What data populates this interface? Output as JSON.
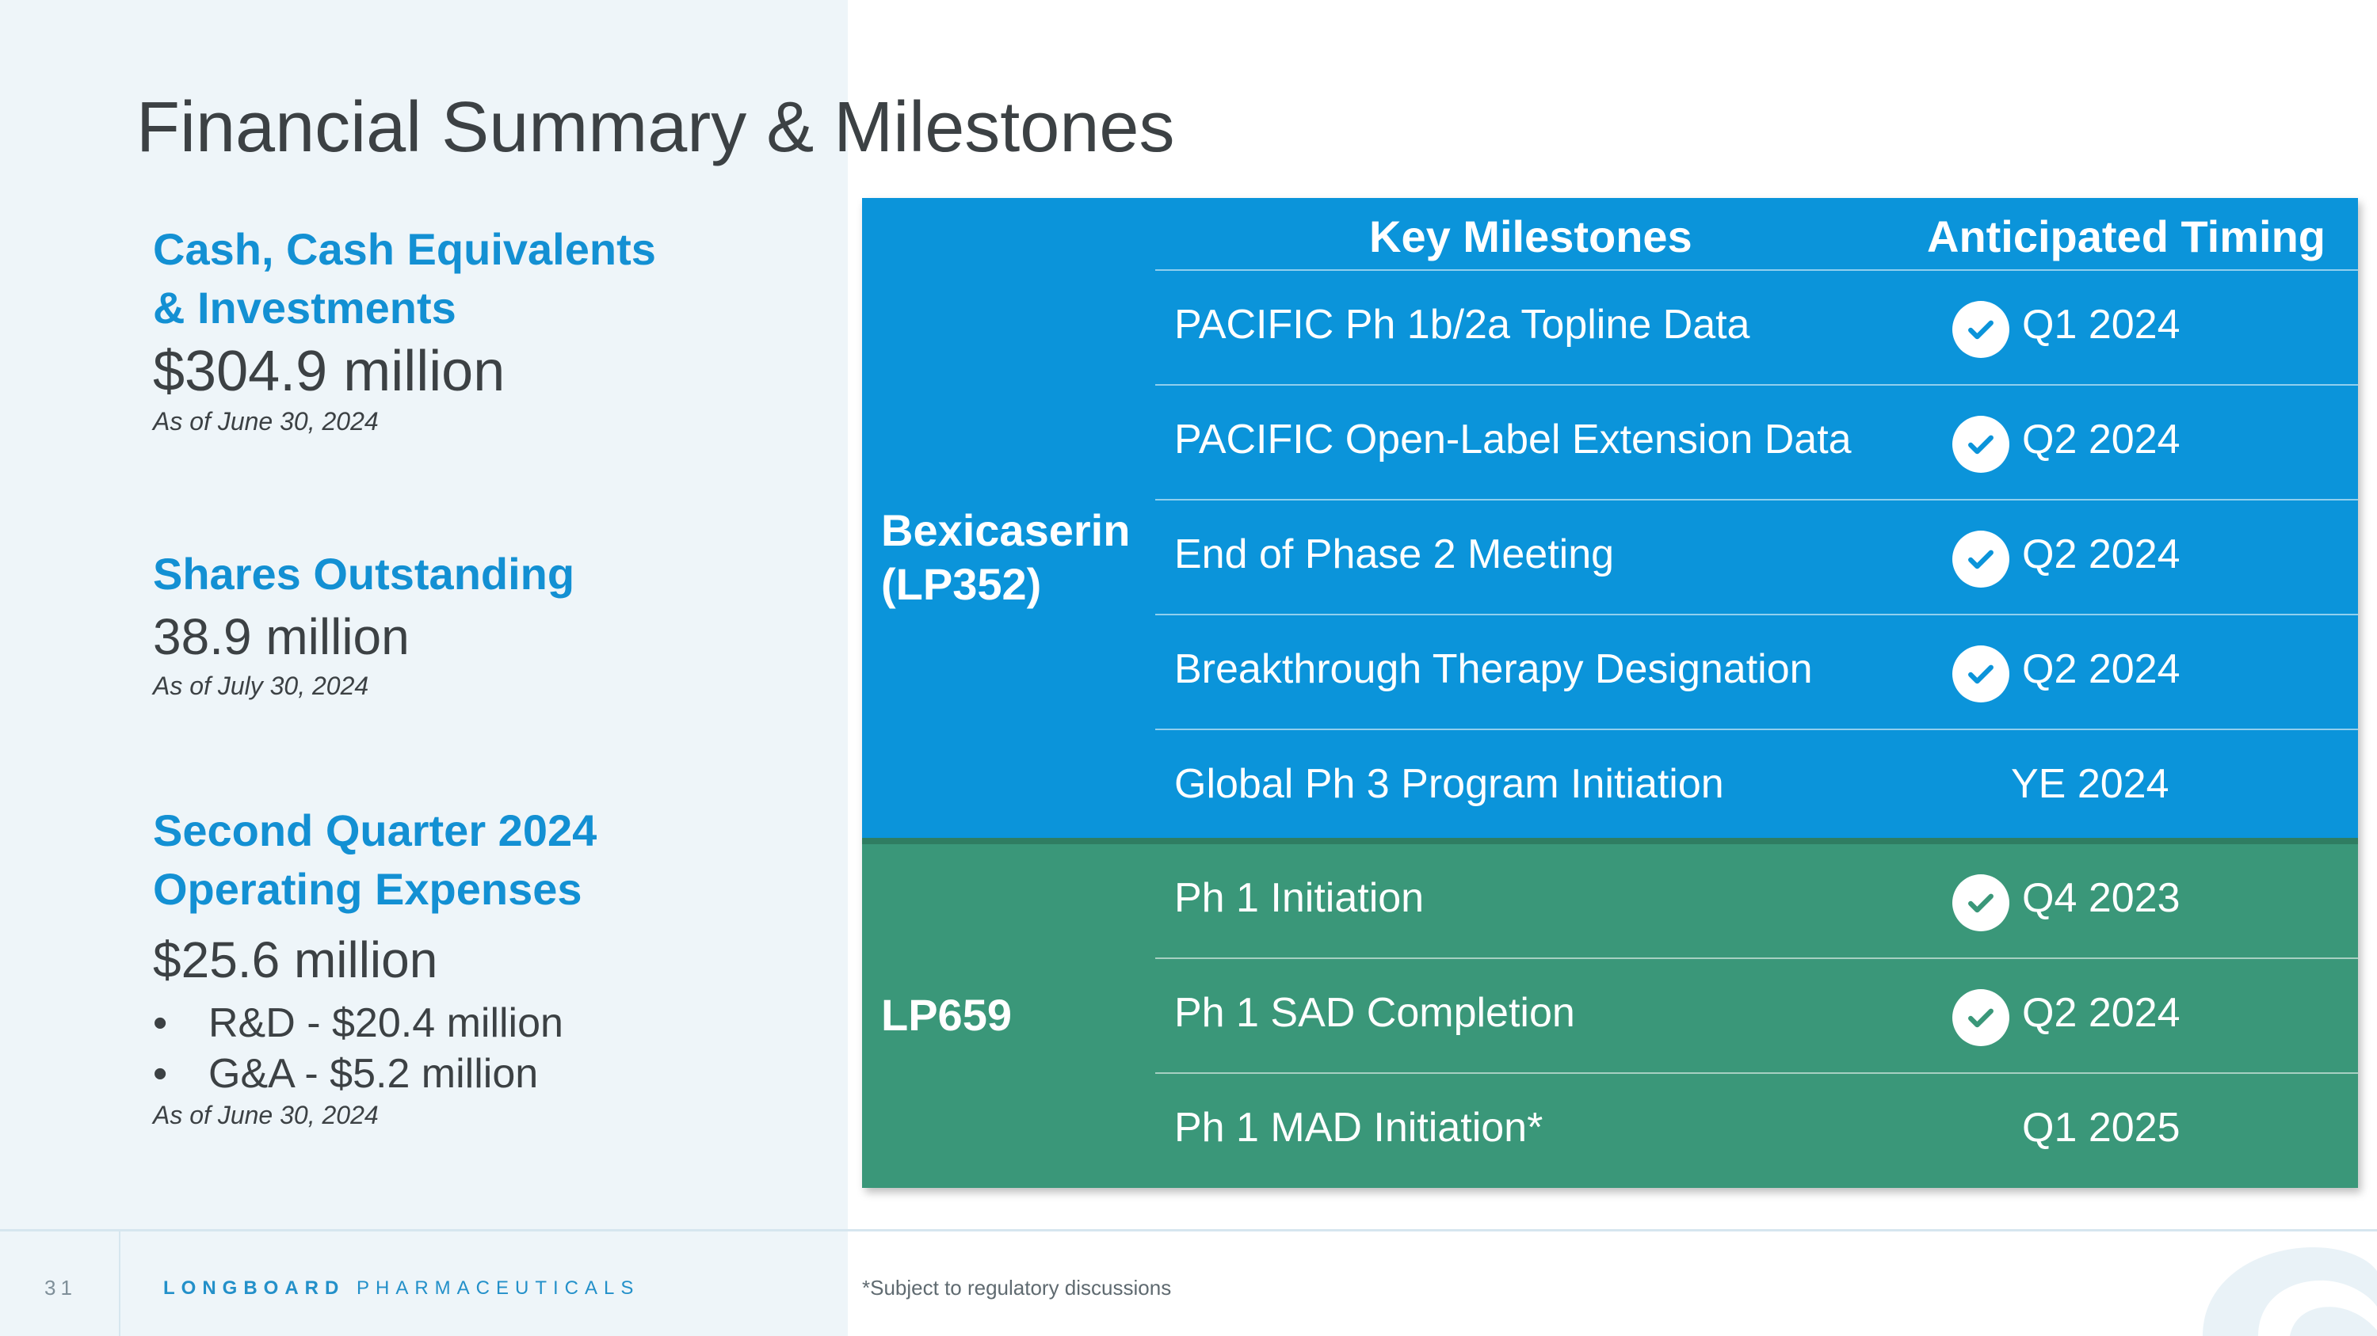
{
  "title": "Financial Summary & Milestones",
  "stats": {
    "cash": {
      "heading_line1": "Cash, Cash Equivalents",
      "heading_line2": "& Investments",
      "value": "$304.9 million",
      "note": "As of June 30, 2024"
    },
    "shares": {
      "heading": "Shares Outstanding",
      "value": "38.9 million",
      "note": "As of July 30, 2024"
    },
    "opex": {
      "heading_line1": "Second Quarter 2024",
      "heading_line2": "Operating Expenses",
      "value": "$25.6 million",
      "bullets": [
        "R&D - $20.4 million",
        "G&A - $5.2 million"
      ],
      "note": "As of June 30, 2024"
    }
  },
  "milestones_table": {
    "header_milestones": "Key Milestones",
    "header_timing": "Anticipated Timing",
    "groups": [
      {
        "label_line1": "Bexicaserin",
        "label_line2": "(LP352)",
        "color": "#0b94da",
        "rows": [
          {
            "milestone": "PACIFIC Ph 1b/2a Topline Data",
            "timing": "Q1 2024",
            "completed": true
          },
          {
            "milestone": "PACIFIC Open-Label Extension Data",
            "timing": "Q2 2024",
            "completed": true
          },
          {
            "milestone": "End of Phase 2 Meeting",
            "timing": "Q2 2024",
            "completed": true
          },
          {
            "milestone": "Breakthrough Therapy Designation",
            "timing": "Q2 2024",
            "completed": true
          },
          {
            "milestone": "Global Ph 3 Program Initiation",
            "timing": "YE 2024",
            "completed": false
          }
        ]
      },
      {
        "label_line1": "LP659",
        "color": "#3a9779",
        "rows": [
          {
            "milestone": "Ph 1 Initiation",
            "timing": "Q4 2023",
            "completed": true
          },
          {
            "milestone": "Ph 1 SAD Completion",
            "timing": "Q2 2024",
            "completed": true
          },
          {
            "milestone": "Ph 1 MAD Initiation*",
            "timing": "Q1 2025",
            "completed": false
          }
        ]
      }
    ],
    "check_icon": "check-circle-icon"
  },
  "footer": {
    "page_number": "31",
    "brand_bold": "LONGBOARD",
    "brand_regular": "PHARMACEUTICALS",
    "footnote": "*Subject to regulatory discussions"
  }
}
